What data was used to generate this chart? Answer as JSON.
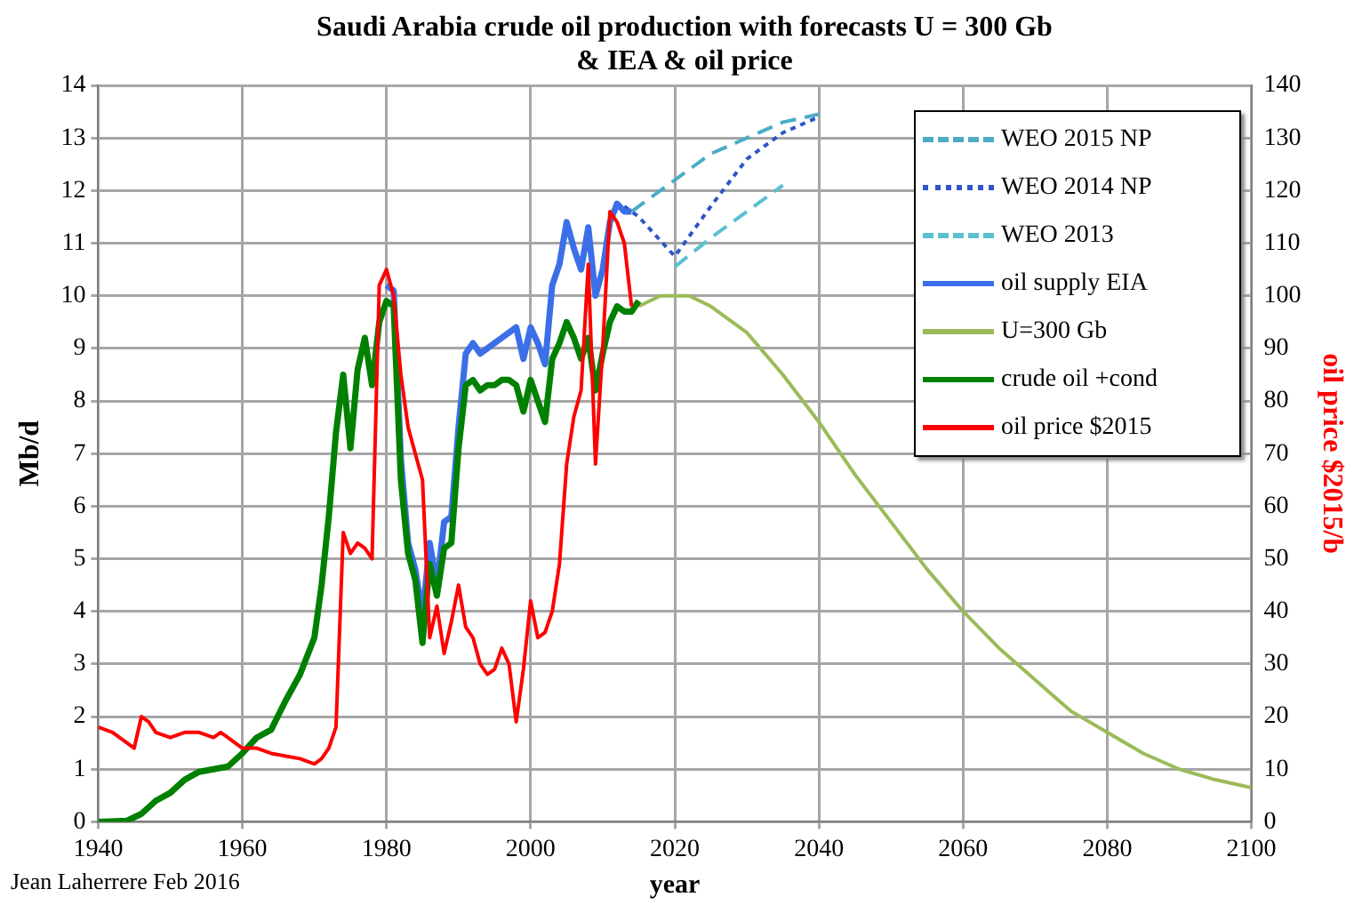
{
  "chart_data": {
    "type": "line",
    "title": "Saudi Arabia crude oil production with forecasts U = 300 Gb & IEA & oil price",
    "xlabel": "year",
    "ylabel": "Mb/d",
    "y2label": "oil price $2015/b",
    "xlim": [
      1940,
      2100
    ],
    "xticks": [
      1940,
      1960,
      1980,
      2000,
      2020,
      2040,
      2060,
      2080,
      2100
    ],
    "ylim": [
      0,
      14
    ],
    "yticks": [
      0,
      1,
      2,
      3,
      4,
      5,
      6,
      7,
      8,
      9,
      10,
      11,
      12,
      13,
      14
    ],
    "y2lim": [
      0,
      140
    ],
    "y2ticks": [
      0,
      10,
      20,
      30,
      40,
      50,
      60,
      70,
      80,
      90,
      100,
      110,
      120,
      130,
      140
    ],
    "grid": true,
    "legend": "top right",
    "marker": "none",
    "annotations": [
      "Jean Laherrere Feb 2016"
    ],
    "series": [
      {
        "name": "WEO 2015 NP",
        "color": "#4bacc6",
        "line_style": "dashed",
        "x": [
          2014,
          2015,
          2020,
          2025,
          2030,
          2035,
          2040
        ],
        "values": [
          11.6,
          11.7,
          12.2,
          12.7,
          13.0,
          13.3,
          13.45
        ]
      },
      {
        "name": "WEO 2014 NP",
        "color": "#2f55c8",
        "line_style": "dotted",
        "x": [
          2013,
          2015,
          2020,
          2025,
          2030,
          2035,
          2040
        ],
        "values": [
          11.7,
          11.5,
          10.75,
          11.7,
          12.6,
          13.1,
          13.4
        ]
      },
      {
        "name": "WEO 2013",
        "color": "#5bbfd2",
        "line_style": "dashed",
        "x": [
          2020,
          2025,
          2030,
          2035
        ],
        "values": [
          10.55,
          11.1,
          11.6,
          12.1
        ]
      },
      {
        "name": "oil supply EIA",
        "color": "#3b6fe8",
        "x": [
          1980,
          1981,
          1982,
          1983,
          1984,
          1985,
          1986,
          1987,
          1988,
          1989,
          1990,
          1991,
          1992,
          1993,
          1994,
          1995,
          1996,
          1997,
          1998,
          1999,
          2000,
          2001,
          2002,
          2003,
          2004,
          2005,
          2006,
          2007,
          2008,
          2009,
          2010,
          2011,
          2012,
          2013,
          2014
        ],
        "values": [
          10.2,
          10.1,
          6.9,
          5.3,
          4.8,
          3.9,
          5.3,
          4.5,
          5.7,
          5.8,
          7.5,
          8.9,
          9.1,
          8.9,
          9.0,
          9.1,
          9.2,
          9.3,
          9.4,
          8.8,
          9.4,
          9.1,
          8.7,
          10.2,
          10.6,
          11.4,
          10.9,
          10.5,
          11.3,
          10.0,
          10.5,
          11.4,
          11.75,
          11.6,
          11.6
        ]
      },
      {
        "name": "U=300 Gb",
        "color": "#9bbb59",
        "x": [
          2015,
          2018,
          2022,
          2025,
          2030,
          2035,
          2040,
          2045,
          2050,
          2055,
          2060,
          2065,
          2070,
          2075,
          2080,
          2085,
          2090,
          2095,
          2100
        ],
        "values": [
          9.8,
          10.0,
          10.0,
          9.8,
          9.3,
          8.5,
          7.6,
          6.6,
          5.7,
          4.8,
          4.0,
          3.3,
          2.7,
          2.1,
          1.7,
          1.3,
          1.0,
          0.8,
          0.65
        ]
      },
      {
        "name": "crude oil +cond",
        "color": "#008000",
        "x": [
          1940,
          1944,
          1946,
          1948,
          1950,
          1952,
          1954,
          1956,
          1958,
          1960,
          1962,
          1964,
          1966,
          1968,
          1970,
          1971,
          1972,
          1973,
          1974,
          1975,
          1976,
          1977,
          1978,
          1979,
          1980,
          1981,
          1982,
          1983,
          1984,
          1985,
          1986,
          1987,
          1988,
          1989,
          1990,
          1991,
          1992,
          1993,
          1994,
          1995,
          1996,
          1997,
          1998,
          1999,
          2000,
          2001,
          2002,
          2003,
          2004,
          2005,
          2006,
          2007,
          2008,
          2009,
          2010,
          2011,
          2012,
          2013,
          2014,
          2015
        ],
        "values": [
          0,
          0.02,
          0.15,
          0.4,
          0.55,
          0.8,
          0.95,
          1.0,
          1.05,
          1.3,
          1.6,
          1.75,
          2.3,
          2.8,
          3.5,
          4.5,
          5.8,
          7.4,
          8.5,
          7.1,
          8.6,
          9.2,
          8.3,
          9.5,
          9.9,
          9.8,
          6.5,
          5.1,
          4.6,
          3.4,
          4.9,
          4.3,
          5.2,
          5.3,
          7.1,
          8.3,
          8.4,
          8.2,
          8.3,
          8.3,
          8.4,
          8.4,
          8.3,
          7.8,
          8.4,
          8.0,
          7.6,
          8.8,
          9.1,
          9.5,
          9.2,
          8.8,
          9.2,
          8.2,
          8.9,
          9.5,
          9.8,
          9.7,
          9.7,
          9.9
        ]
      },
      {
        "name": "oil price $2015",
        "color": "#ff0000",
        "axis": "y2",
        "x": [
          1940,
          1942,
          1944,
          1945,
          1946,
          1947,
          1948,
          1950,
          1952,
          1954,
          1956,
          1957,
          1958,
          1960,
          1962,
          1964,
          1966,
          1968,
          1970,
          1971,
          1972,
          1973,
          1974,
          1975,
          1976,
          1977,
          1978,
          1979,
          1980,
          1981,
          1982,
          1983,
          1984,
          1985,
          1986,
          1987,
          1988,
          1989,
          1990,
          1991,
          1992,
          1993,
          1994,
          1995,
          1996,
          1997,
          1998,
          1999,
          2000,
          2001,
          2002,
          2003,
          2004,
          2005,
          2006,
          2007,
          2008,
          2009,
          2010,
          2011,
          2012,
          2013,
          2014
        ],
        "values": [
          18,
          17,
          15,
          14,
          20,
          19,
          17,
          16,
          17,
          17,
          16,
          17,
          16,
          14,
          14,
          13,
          12.5,
          12,
          11,
          12,
          14,
          18,
          55,
          51,
          53,
          52,
          50,
          102,
          105,
          100,
          85,
          75,
          70,
          65,
          35,
          41,
          32,
          38,
          45,
          37,
          35,
          30,
          28,
          29,
          33,
          30,
          19,
          29,
          42,
          35,
          36,
          40,
          49,
          68,
          77,
          82,
          106,
          68,
          90,
          116,
          114,
          110,
          98
        ]
      }
    ]
  }
}
